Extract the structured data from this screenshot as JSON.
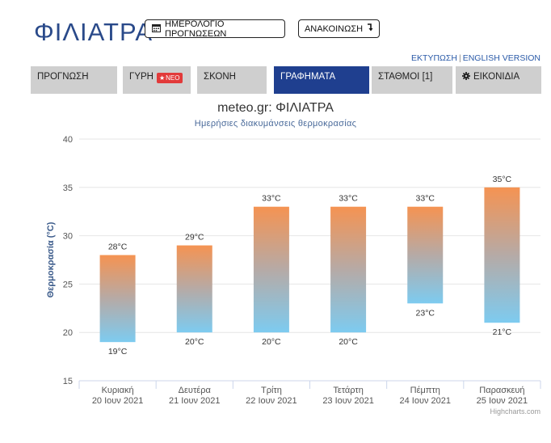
{
  "header": {
    "city": "ΦΙΛΙΑΤΡΑ",
    "calendar_button": "ΗΜΕΡΟΛΟΓΙΟ ΠΡΟΓΝΩΣΕΩΝ",
    "announce_button": "ΑΝΑΚΟΙΝΩΣΗ",
    "print_link": "ΕΚΤΥΠΩΣΗ",
    "english_link": "ENGLISH VERSION"
  },
  "tabs": [
    {
      "label": "ΠΡΟΓΝΩΣΗ"
    },
    {
      "label": "ΓΥΡΗ",
      "badge": "ΝΕΟ"
    },
    {
      "label": "ΣΚΟΝΗ"
    },
    {
      "label": "ΓΡΑΦΗΜΑΤΑ",
      "active": true
    },
    {
      "label": "ΣΤΑΘΜΟΙ [1]"
    },
    {
      "label": "ΕΙΚΟΝΙΔΙΑ"
    }
  ],
  "icons": {
    "calendar": "calendar-icon",
    "announce": "arrow-down-icon",
    "badge": "star-icon",
    "settings": "gear-icon"
  },
  "colors": {
    "title": "#2a4a8a",
    "active_tab": "#1f3f8f",
    "bar_top": "#f59352",
    "bar_bottom": "#7dcbf0",
    "badge": "#e23a3a"
  },
  "credits": "Highcharts.com",
  "chart_data": {
    "type": "bar",
    "title": "meteo.gr: ΦΙΛΙΑΤΡΑ",
    "subtitle": "Ημερήσιες διακυμάνσεις θερμοκρασίας",
    "ylabel": "Θερμοκρασία (°C)",
    "ylim": [
      15,
      40
    ],
    "yticks": [
      15,
      20,
      25,
      30,
      35,
      40
    ],
    "grid": true,
    "categories": [
      [
        "Κυριακή",
        "20 Ιουν 2021"
      ],
      [
        "Δευτέρα",
        "21 Ιουν 2021"
      ],
      [
        "Τρίτη",
        "22 Ιουν 2021"
      ],
      [
        "Τετάρτη",
        "23 Ιουν 2021"
      ],
      [
        "Πέμπτη",
        "24 Ιουν 2021"
      ],
      [
        "Παρασκευή",
        "25 Ιουν 2021"
      ]
    ],
    "min": [
      19,
      20,
      20,
      20,
      23,
      21
    ],
    "max": [
      28,
      29,
      33,
      33,
      33,
      35
    ],
    "unit": "°C"
  }
}
